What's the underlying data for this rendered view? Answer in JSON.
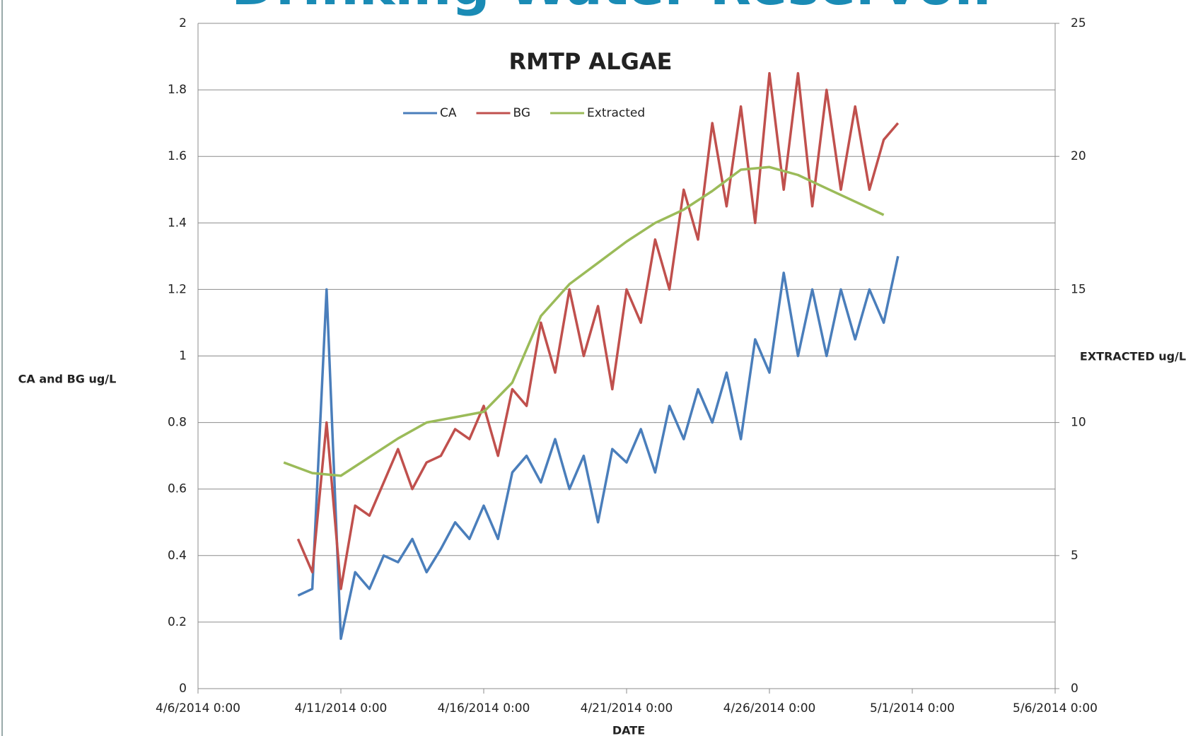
{
  "page_title": "Drinking Water Reservoir",
  "chart_data": {
    "type": "line",
    "title": "RMTP ALGAE",
    "x_label": "DATE",
    "y_label": "CA and BG ug/L",
    "y2_label": "EXTRACTED ug/L",
    "xlim": [
      "4/6/2014 0:00",
      "5/6/2014 0:00"
    ],
    "xticks": [
      "4/6/2014 0:00",
      "4/11/2014 0:00",
      "4/16/2014 0:00",
      "4/21/2014 0:00",
      "4/26/2014 0:00",
      "5/1/2014 0:00",
      "5/6/2014 0:00"
    ],
    "ylim": [
      0,
      2
    ],
    "yticks": [
      0,
      0.2,
      0.4,
      0.6,
      0.8,
      1,
      1.2,
      1.4,
      1.6,
      1.8,
      2
    ],
    "y2lim": [
      0,
      25
    ],
    "y2ticks": [
      0,
      5,
      10,
      15,
      20,
      25
    ],
    "grid": true,
    "legend": "top",
    "series": [
      {
        "name": "CA",
        "color": "#4a7ebb",
        "x": [
          "4/9/2014 12:00",
          "4/10/2014 0:00",
          "4/10/2014 12:00",
          "4/11/2014 0:00",
          "4/11/2014 12:00",
          "4/12/2014 0:00",
          "4/12/2014 12:00",
          "4/13/2014 0:00",
          "4/13/2014 12:00",
          "4/14/2014 0:00",
          "4/14/2014 12:00",
          "4/15/2014 0:00",
          "4/15/2014 12:00",
          "4/16/2014 0:00",
          "4/16/2014 12:00",
          "4/17/2014 0:00",
          "4/17/2014 12:00",
          "4/18/2014 0:00",
          "4/18/2014 12:00",
          "4/19/2014 0:00",
          "4/19/2014 12:00",
          "4/20/2014 0:00",
          "4/20/2014 12:00",
          "4/21/2014 0:00",
          "4/21/2014 12:00",
          "4/22/2014 0:00",
          "4/22/2014 12:00",
          "4/23/2014 0:00",
          "4/23/2014 12:00",
          "4/24/2014 0:00",
          "4/24/2014 12:00",
          "4/25/2014 0:00",
          "4/25/2014 12:00",
          "4/26/2014 0:00",
          "4/26/2014 12:00",
          "4/27/2014 0:00",
          "4/27/2014 12:00",
          "4/28/2014 0:00",
          "4/28/2014 12:00",
          "4/29/2014 0:00",
          "4/29/2014 12:00",
          "4/30/2014 0:00",
          "4/30/2014 12:00"
        ],
        "values": [
          0.28,
          0.3,
          1.2,
          0.15,
          0.35,
          0.3,
          0.4,
          0.38,
          0.45,
          0.35,
          0.42,
          0.5,
          0.45,
          0.55,
          0.45,
          0.65,
          0.7,
          0.62,
          0.75,
          0.6,
          0.7,
          0.5,
          0.72,
          0.68,
          0.78,
          0.65,
          0.85,
          0.75,
          0.9,
          0.8,
          0.95,
          0.75,
          1.05,
          0.95,
          1.25,
          1.0,
          1.2,
          1.0,
          1.2,
          1.05,
          1.2,
          1.1,
          1.3
        ]
      },
      {
        "name": "BG",
        "color": "#c0504d",
        "x": [
          "4/9/2014 12:00",
          "4/10/2014 0:00",
          "4/10/2014 12:00",
          "4/11/2014 0:00",
          "4/11/2014 12:00",
          "4/12/2014 0:00",
          "4/12/2014 12:00",
          "4/13/2014 0:00",
          "4/13/2014 12:00",
          "4/14/2014 0:00",
          "4/14/2014 12:00",
          "4/15/2014 0:00",
          "4/15/2014 12:00",
          "4/16/2014 0:00",
          "4/16/2014 12:00",
          "4/17/2014 0:00",
          "4/17/2014 12:00",
          "4/18/2014 0:00",
          "4/18/2014 12:00",
          "4/19/2014 0:00",
          "4/19/2014 12:00",
          "4/20/2014 0:00",
          "4/20/2014 12:00",
          "4/21/2014 0:00",
          "4/21/2014 12:00",
          "4/22/2014 0:00",
          "4/22/2014 12:00",
          "4/23/2014 0:00",
          "4/23/2014 12:00",
          "4/24/2014 0:00",
          "4/24/2014 12:00",
          "4/25/2014 0:00",
          "4/25/2014 12:00",
          "4/26/2014 0:00",
          "4/26/2014 12:00",
          "4/27/2014 0:00",
          "4/27/2014 12:00",
          "4/28/2014 0:00",
          "4/28/2014 12:00",
          "4/29/2014 0:00",
          "4/29/2014 12:00",
          "4/30/2014 0:00",
          "4/30/2014 12:00"
        ],
        "values": [
          0.45,
          0.35,
          0.8,
          0.3,
          0.55,
          0.52,
          0.62,
          0.72,
          0.6,
          0.68,
          0.7,
          0.78,
          0.75,
          0.85,
          0.7,
          0.9,
          0.85,
          1.1,
          0.95,
          1.2,
          1.0,
          1.15,
          0.9,
          1.2,
          1.1,
          1.35,
          1.2,
          1.5,
          1.35,
          1.7,
          1.45,
          1.75,
          1.4,
          1.85,
          1.5,
          1.85,
          1.45,
          1.8,
          1.5,
          1.75,
          1.5,
          1.65,
          1.7
        ]
      },
      {
        "name": "Extracted",
        "color": "#9bbb59",
        "axis": "y2",
        "x": [
          "4/9/2014 0:00",
          "4/10/2014 0:00",
          "4/11/2014 0:00",
          "4/12/2014 0:00",
          "4/13/2014 0:00",
          "4/14/2014 0:00",
          "4/15/2014 0:00",
          "4/16/2014 0:00",
          "4/17/2014 0:00",
          "4/18/2014 0:00",
          "4/19/2014 0:00",
          "4/20/2014 0:00",
          "4/21/2014 0:00",
          "4/22/2014 0:00",
          "4/23/2014 0:00",
          "4/24/2014 0:00",
          "4/25/2014 0:00",
          "4/26/2014 0:00",
          "4/27/2014 0:00",
          "4/28/2014 0:00",
          "4/29/2014 0:00",
          "4/30/2014 0:00"
        ],
        "values": [
          8.5,
          8.1,
          8.0,
          8.7,
          9.4,
          10.0,
          10.2,
          10.4,
          11.5,
          14.0,
          15.2,
          16.0,
          16.8,
          17.5,
          18.0,
          18.7,
          19.5,
          19.6,
          19.3,
          18.8,
          18.3,
          17.8
        ]
      }
    ]
  }
}
